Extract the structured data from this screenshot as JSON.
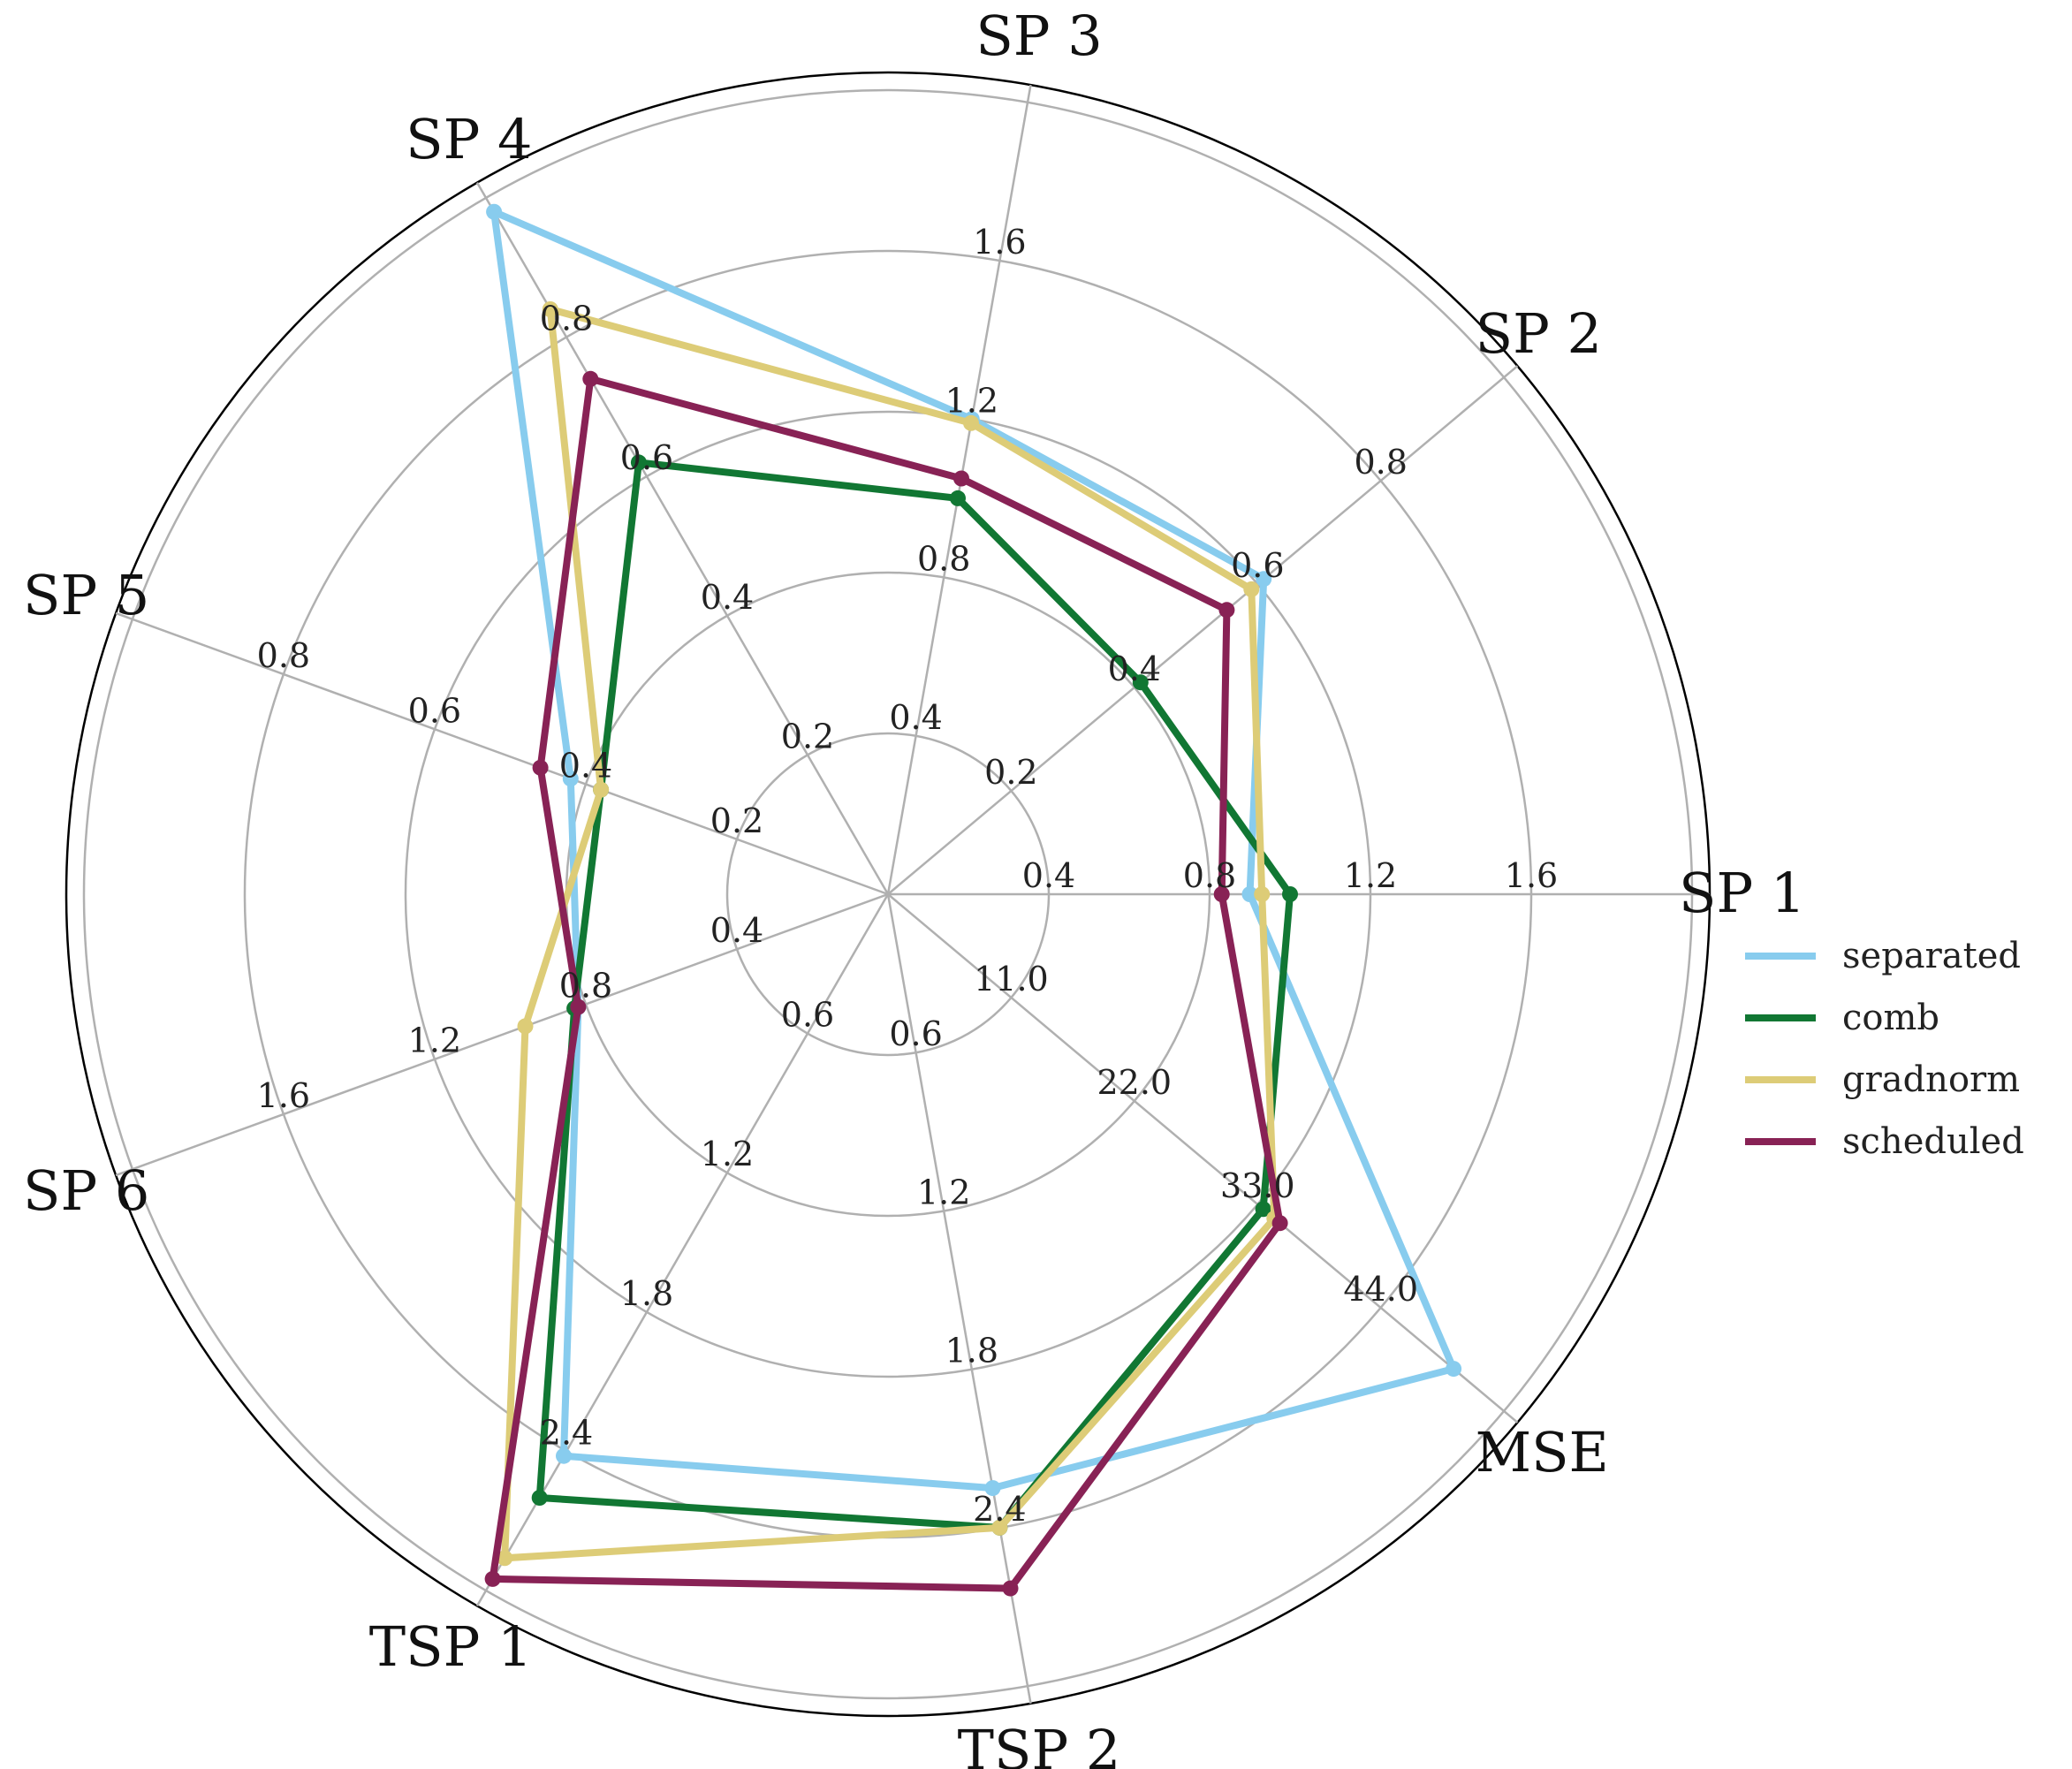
{
  "chart_data": {
    "type": "radar",
    "axes": [
      "SP 1",
      "SP 2",
      "SP 3",
      "SP 4",
      "SP 5",
      "SP 6",
      "TSP 1",
      "TSP 2",
      "MSE"
    ],
    "axis_ticks": [
      [
        "0.4",
        "0.8",
        "1.2",
        "1.6"
      ],
      [
        "0.2",
        "0.4",
        "0.6",
        "0.8"
      ],
      [
        "0.4",
        "0.8",
        "1.2",
        "1.6"
      ],
      [
        "0.2",
        "0.4",
        "0.6",
        "0.8"
      ],
      [
        "0.2",
        "0.4",
        "0.6",
        "0.8"
      ],
      [
        "0.4",
        "0.8",
        "1.2",
        "1.6"
      ],
      [
        "0.6",
        "1.2",
        "1.8",
        "2.4"
      ],
      [
        "0.6",
        "1.2",
        "1.8",
        "2.4"
      ],
      [
        "11.0",
        "22.0",
        "33.0",
        "44.0"
      ]
    ],
    "axis_max": [
      2.0,
      1.0,
      2.0,
      1.0,
      1.0,
      2.0,
      3.0,
      3.0,
      55.0
    ],
    "series": [
      {
        "name": "separated",
        "color": "#88CCEE",
        "values": [
          0.9,
          0.61,
          1.2,
          0.98,
          0.42,
          0.82,
          2.42,
          2.25,
          50.5
        ]
      },
      {
        "name": "comb",
        "color": "#117733",
        "values": [
          1.0,
          0.41,
          1.0,
          0.62,
          0.38,
          0.83,
          2.6,
          2.4,
          33.5
        ]
      },
      {
        "name": "gradnorm",
        "color": "#DDCC77",
        "values": [
          0.93,
          0.59,
          1.19,
          0.84,
          0.38,
          0.96,
          2.86,
          2.4,
          34.5
        ]
      },
      {
        "name": "scheduled",
        "color": "#882255",
        "values": [
          0.83,
          0.55,
          1.05,
          0.74,
          0.46,
          0.82,
          2.95,
          2.63,
          35.0
        ]
      }
    ],
    "grid": true,
    "legend_position": "right"
  }
}
